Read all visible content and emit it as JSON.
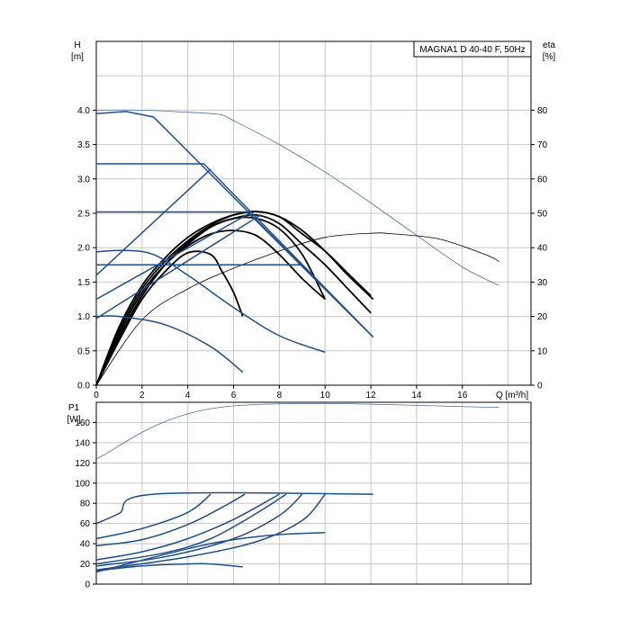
{
  "chart_data": [
    {
      "type": "line",
      "title": "MAGNA1 D 40-40 F, 50Hz",
      "ylabel": "H",
      "yunit": "[m]",
      "y2label": "eta",
      "y2unit": "[%]",
      "xlabel": "Q [m³/h]",
      "xlim": [
        0,
        19
      ],
      "ylim": [
        0,
        5
      ],
      "y2lim": [
        0,
        100
      ],
      "xticks": [
        "0",
        "2",
        "4",
        "6",
        "8",
        "10",
        "12",
        "14",
        "16"
      ],
      "yticks": [
        "0.0",
        "0.5",
        "1.0",
        "1.5",
        "2.0",
        "2.5",
        "3.0",
        "3.5",
        "4.0"
      ],
      "y2ticks": [
        "0",
        "10",
        "20",
        "30",
        "40",
        "50",
        "60",
        "70",
        "80"
      ],
      "grid": true,
      "colors": {
        "pump_curve": "#1f4e8c",
        "efficiency": "#000000",
        "max_curve": "#4a6fa5",
        "grid": "#c8c8c8"
      },
      "series_pump": [
        {
          "values": [
            [
              0,
              3.22
            ],
            [
              4.7,
              3.22
            ],
            [
              12.1,
              0.7
            ]
          ]
        },
        {
          "values": [
            [
              0,
              1.6
            ],
            [
              5,
              3.14
            ]
          ]
        },
        {
          "values": [
            [
              0,
              2.52
            ],
            [
              6.6,
              2.52
            ],
            [
              12.1,
              0.7
            ]
          ]
        },
        {
          "values": [
            [
              0,
              1.25
            ],
            [
              6.7,
              2.5
            ]
          ]
        },
        {
          "values": [
            [
              0,
              0.97
            ],
            [
              7.2,
              2.48
            ]
          ]
        },
        {
          "values": [
            [
              0,
              1.75
            ],
            [
              8.9,
              1.75
            ]
          ]
        },
        {
          "values": [
            [
              0,
              3.95
            ],
            [
              1.3,
              3.98
            ],
            [
              2.5,
              3.9
            ],
            [
              12.1,
              0.7
            ]
          ]
        },
        {
          "values": [
            [
              0,
              1.94
            ],
            [
              1.3,
              1.96
            ],
            [
              2.5,
              1.9
            ],
            [
              4,
              1.6
            ],
            [
              6,
              1.13
            ],
            [
              8,
              0.72
            ],
            [
              10,
              0.48
            ]
          ]
        },
        {
          "values": [
            [
              0,
              1.0
            ],
            [
              1,
              1.0
            ],
            [
              3,
              0.88
            ],
            [
              5,
              0.56
            ],
            [
              6.4,
              0.19
            ]
          ]
        }
      ],
      "series_efficiency": [
        {
          "values": [
            [
              0,
              0
            ],
            [
              1,
              17
            ],
            [
              2,
              29
            ],
            [
              3,
              37
            ],
            [
              4,
              43
            ],
            [
              5,
              47
            ],
            [
              6,
              49.5
            ],
            [
              7,
              50.5
            ],
            [
              8,
              49
            ],
            [
              9,
              45
            ],
            [
              10,
              39
            ],
            [
              11,
              32
            ],
            [
              12.1,
              25
            ]
          ]
        },
        {
          "values": [
            [
              0,
              0
            ],
            [
              1,
              16
            ],
            [
              2,
              28
            ],
            [
              3,
              36
            ],
            [
              4,
              42
            ],
            [
              5,
              46.5
            ],
            [
              6,
              49.5
            ],
            [
              7,
              50.5
            ],
            [
              8,
              49
            ],
            [
              9,
              44
            ],
            [
              10,
              39
            ],
            [
              11,
              32.5
            ],
            [
              12,
              26
            ]
          ]
        },
        {
          "values": [
            [
              0,
              0
            ],
            [
              1,
              15
            ],
            [
              2,
              27
            ],
            [
              3,
              35
            ],
            [
              4,
              41
            ],
            [
              5,
              46
            ],
            [
              6,
              48.5
            ],
            [
              7,
              49.5
            ],
            [
              8,
              47
            ],
            [
              9,
              41
            ],
            [
              10,
              35
            ],
            [
              11,
              28
            ],
            [
              12,
              21
            ]
          ]
        },
        {
          "values": [
            [
              0,
              0
            ],
            [
              1,
              14
            ],
            [
              2,
              26
            ],
            [
              3,
              35
            ],
            [
              4,
              41.5
            ],
            [
              5,
              46
            ],
            [
              6,
              48.5
            ],
            [
              7,
              48.5
            ],
            [
              8,
              45.5
            ],
            [
              9,
              38
            ],
            [
              10,
              25
            ]
          ]
        },
        {
          "values": [
            [
              0,
              0
            ],
            [
              1,
              14
            ],
            [
              2,
              26
            ],
            [
              3,
              35
            ],
            [
              4,
              40.5
            ],
            [
              5,
              44
            ],
            [
              6,
              45
            ],
            [
              7,
              43.5
            ],
            [
              8,
              38
            ],
            [
              9,
              31
            ],
            [
              10,
              25
            ]
          ]
        },
        {
          "values": [
            [
              0,
              0
            ],
            [
              1,
              13
            ],
            [
              2,
              25
            ],
            [
              3,
              33
            ],
            [
              4,
              38.5
            ],
            [
              5,
              38
            ],
            [
              5.5,
              33
            ],
            [
              6,
              27
            ],
            [
              6.4,
              20
            ]
          ]
        },
        {
          "values": [
            [
              0,
              0
            ],
            [
              2,
              19
            ],
            [
              4,
              28
            ],
            [
              6,
              34
            ],
            [
              8,
              39
            ],
            [
              10,
              43
            ],
            [
              12,
              44.2
            ],
            [
              13,
              44
            ],
            [
              15,
              42.5
            ],
            [
              17,
              38
            ],
            [
              17.6,
              36
            ]
          ]
        }
      ],
      "series_max_q": [
        {
          "values": [
            [
              0,
              4.0
            ],
            [
              2,
              4.0
            ],
            [
              4,
              3.97
            ],
            [
              5,
              3.95
            ],
            [
              5.5,
              3.93
            ],
            [
              6,
              3.85
            ],
            [
              8,
              3.5
            ],
            [
              10,
              3.1
            ],
            [
              12,
              2.65
            ],
            [
              14,
              2.18
            ],
            [
              16,
              1.72
            ],
            [
              17.6,
              1.45
            ]
          ]
        }
      ]
    },
    {
      "type": "line",
      "ylabel": "P1",
      "yunit": "[W]",
      "xlim": [
        0,
        19
      ],
      "ylim": [
        0,
        180
      ],
      "yticks": [
        "0",
        "20",
        "40",
        "60",
        "80",
        "100",
        "120",
        "140",
        "160"
      ],
      "grid": true,
      "series_power": [
        {
          "values": [
            [
              0,
              124
            ],
            [
              5.4,
              175
            ],
            [
              17.6,
              175
            ]
          ]
        },
        {
          "values": [
            [
              0,
              60
            ],
            [
              1,
              70
            ],
            [
              2.5,
              89
            ],
            [
              12.1,
              89
            ]
          ]
        },
        {
          "values": [
            [
              0,
              45
            ],
            [
              2,
              55
            ],
            [
              4,
              71
            ],
            [
              5,
              89
            ]
          ]
        },
        {
          "values": [
            [
              0,
              38
            ],
            [
              2,
              44
            ],
            [
              4,
              59
            ],
            [
              5.5,
              76
            ],
            [
              6.5,
              89
            ]
          ]
        },
        {
          "values": [
            [
              0,
              24
            ],
            [
              2,
              32
            ],
            [
              4,
              45
            ],
            [
              6,
              64
            ],
            [
              8,
              89
            ]
          ]
        },
        {
          "values": [
            [
              0,
              20
            ],
            [
              3,
              31
            ],
            [
              5,
              45
            ],
            [
              7,
              70
            ],
            [
              8.3,
              89
            ]
          ]
        },
        {
          "values": [
            [
              0,
              18
            ],
            [
              3,
              27
            ],
            [
              6,
              45
            ],
            [
              8,
              68
            ],
            [
              9,
              89
            ]
          ]
        },
        {
          "values": [
            [
              0,
              14
            ],
            [
              4,
              27
            ],
            [
              7,
              42
            ],
            [
              9,
              63
            ],
            [
              10,
              89
            ]
          ]
        },
        {
          "values": [
            [
              0,
              12
            ],
            [
              4,
              35
            ],
            [
              6,
              44
            ],
            [
              8,
              49
            ],
            [
              10,
              51
            ]
          ]
        },
        {
          "values": [
            [
              0,
              13
            ],
            [
              2,
              18
            ],
            [
              4,
              20
            ],
            [
              5,
              20
            ],
            [
              6.4,
              17
            ]
          ]
        }
      ]
    }
  ]
}
